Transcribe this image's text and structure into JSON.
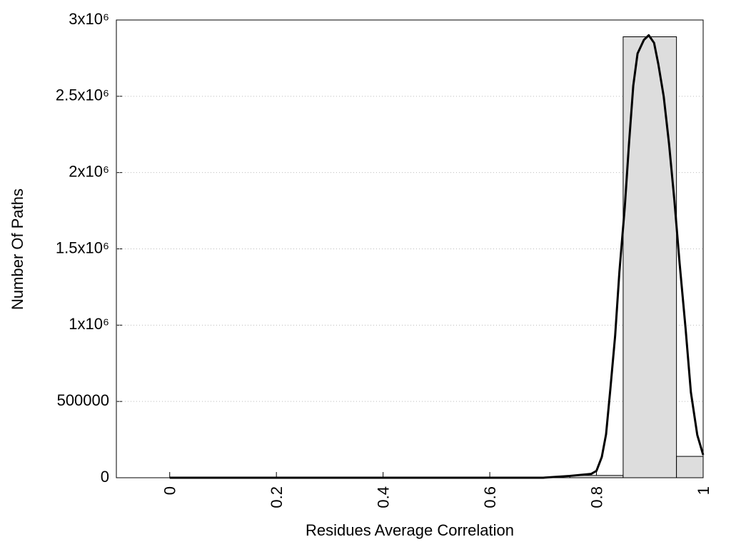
{
  "chart_data": {
    "type": "histogram",
    "x_label": "Residues Average Correlation",
    "y_label": "Number Of Paths",
    "bins": [
      0.75,
      0.85,
      0.95,
      1.0
    ],
    "values": [
      15000,
      2890000,
      140000
    ],
    "color": "#dddddd",
    "overlay": {
      "type": "line",
      "color": "#000000",
      "x": [
        0,
        0.7,
        0.75,
        0.79,
        0.8,
        0.81,
        0.818,
        0.826,
        0.835,
        0.843,
        0.853,
        0.861,
        0.869,
        0.877,
        0.889,
        0.898,
        0.908,
        0.916,
        0.926,
        0.936,
        0.946,
        0.956,
        0.967,
        0.977,
        0.989,
        1.0
      ],
      "values": [
        0,
        0,
        12000,
        25000,
        45000,
        136000,
        285000,
        580000,
        930000,
        1350000,
        1770000,
        2190000,
        2570000,
        2780000,
        2870000,
        2900000,
        2850000,
        2710000,
        2500000,
        2190000,
        1820000,
        1400000,
        980000,
        560000,
        280000,
        150000
      ]
    },
    "xlim": [
      -0.1,
      1
    ],
    "xticks": [
      0,
      0.2,
      0.4,
      0.6,
      0.8,
      1
    ],
    "ylim": [
      0,
      3000000
    ],
    "yticks": [
      0,
      500000,
      {
        "value": 1000000,
        "label": "1x10⁶"
      },
      {
        "value": 1500000,
        "label": "1.5x10⁶"
      },
      {
        "value": 2000000,
        "label": "2x10⁶"
      },
      {
        "value": 2500000,
        "label": "2.5x10⁶"
      },
      {
        "value": 3000000,
        "label": "3x10⁶"
      }
    ],
    "grid": true
  }
}
